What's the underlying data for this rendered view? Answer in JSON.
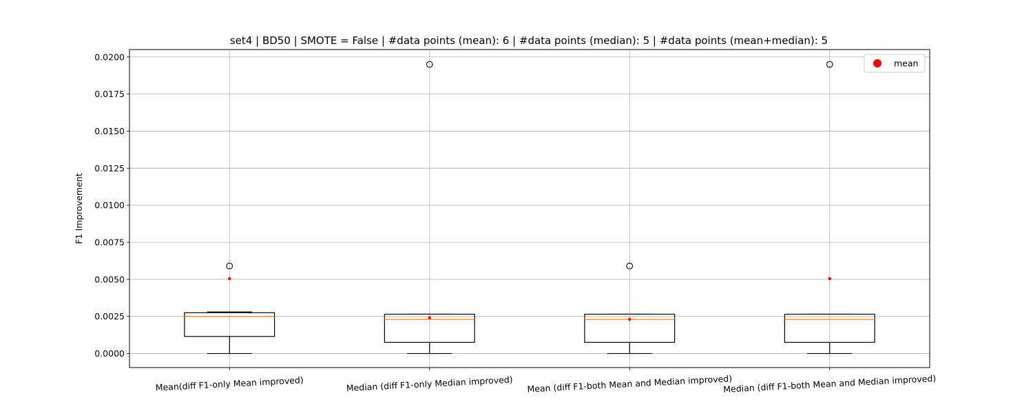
{
  "chart_data": {
    "type": "box",
    "title": "set4 | BD50 | SMOTE = False | #data points (mean): 6 | #data points (median): 5 | #data points (mean+median): 5",
    "xlabel": "",
    "ylabel": "F1 Improvement",
    "ylim": [
      -0.00095,
      0.0205
    ],
    "yticks": [
      "0.0000",
      "0.0025",
      "0.0050",
      "0.0075",
      "0.0100",
      "0.0125",
      "0.0150",
      "0.0175",
      "0.0200"
    ],
    "categories": [
      "Mean(diff F1-only Mean improved)",
      "Median (diff F1-only Median improved)",
      "Mean (diff F1-both Mean and Median improved)",
      "Median (diff F1-both Mean and Median improved)"
    ],
    "boxes": [
      {
        "whisker_low": 0.0,
        "q1": 0.00115,
        "median": 0.0025,
        "q3": 0.00275,
        "whisker_high": 0.0028,
        "mean": 0.00505,
        "outliers": [
          0.0059
        ]
      },
      {
        "whisker_low": 0.0,
        "q1": 0.00075,
        "median": 0.0023,
        "q3": 0.00265,
        "whisker_high": 0.00265,
        "mean": 0.0024,
        "outliers": [
          0.0195
        ]
      },
      {
        "whisker_low": 0.0,
        "q1": 0.00075,
        "median": 0.0023,
        "q3": 0.00265,
        "whisker_high": 0.00265,
        "mean": 0.0023,
        "outliers": [
          0.0059
        ]
      },
      {
        "whisker_low": 0.0,
        "q1": 0.00075,
        "median": 0.0023,
        "q3": 0.00265,
        "whisker_high": 0.00265,
        "mean": 0.00505,
        "outliers": [
          0.0195
        ]
      }
    ],
    "legend": {
      "entries": [
        "mean"
      ],
      "placement": "top-right"
    },
    "grid": true,
    "colors": {
      "box": "#000000",
      "median": "#ff7f0e",
      "mean": "#ff0000",
      "grid": "#b0b0b0"
    }
  }
}
